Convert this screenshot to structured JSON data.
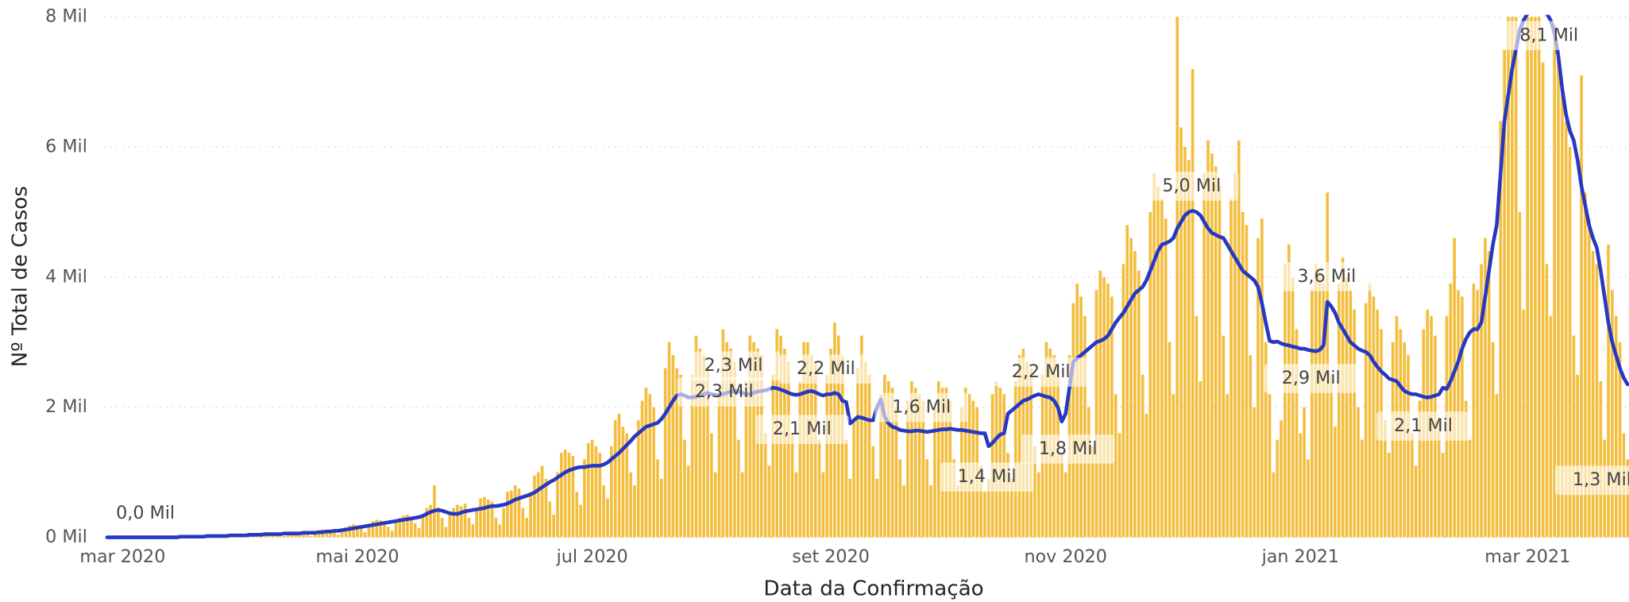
{
  "chart_data": {
    "type": "bar_line",
    "x_axis_label": "Data da Confirmação",
    "y_axis_label": "Nº Total de Casos",
    "x_tick_labels": [
      "mar 2020",
      "mai 2020",
      "jul 2020",
      "set 2020",
      "nov 2020",
      "jan 2021",
      "mar 2021"
    ],
    "ylim": [
      0,
      8
    ],
    "yticks": [
      {
        "value": 0,
        "label": "0 Mil"
      },
      {
        "value": 2,
        "label": "2 Mil"
      },
      {
        "value": 4,
        "label": "4 Mil"
      },
      {
        "value": 6,
        "label": "6 Mil"
      },
      {
        "value": 8,
        "label": "8 Mil"
      }
    ],
    "grid": true,
    "annotations": [
      "0,0 Mil",
      "2,3 Mil",
      "2,3 Mil",
      "2,2 Mil",
      "2,1 Mil",
      "1,6 Mil",
      "1,4 Mil",
      "2,2 Mil",
      "1,8 Mil",
      "5,0 Mil",
      "3,6 Mil",
      "2,9 Mil",
      "2,1 Mil",
      "8,1 Mil",
      "1,3 Mil"
    ],
    "series": [
      {
        "kind": "bar",
        "color": "#F3BE3D",
        "values": [
          0,
          0,
          0,
          0,
          0,
          0,
          0,
          0,
          0,
          0,
          0,
          0,
          0,
          0,
          0,
          0,
          0,
          0,
          0,
          0.01,
          0.01,
          0.02,
          0.01,
          0.01,
          0,
          0.01,
          0.02,
          0.03,
          0.02,
          0.03,
          0.02,
          0.01,
          0.03,
          0.04,
          0.04,
          0.04,
          0.05,
          0.03,
          0.02,
          0.01,
          0.04,
          0.06,
          0.07,
          0.06,
          0.05,
          0.03,
          0.02,
          0.05,
          0.08,
          0.07,
          0.08,
          0.06,
          0.05,
          0.02,
          0.06,
          0.1,
          0.12,
          0.11,
          0.1,
          0.08,
          0.04,
          0.1,
          0.15,
          0.18,
          0.2,
          0.18,
          0.14,
          0.08,
          0.2,
          0.25,
          0.27,
          0.26,
          0.24,
          0.16,
          0.1,
          0.24,
          0.3,
          0.33,
          0.35,
          0.32,
          0.22,
          0.14,
          0.35,
          0.45,
          0.5,
          0.8,
          0.46,
          0.3,
          0.16,
          0.35,
          0.45,
          0.5,
          0.48,
          0.52,
          0.3,
          0.2,
          0.4,
          0.6,
          0.62,
          0.58,
          0.55,
          0.3,
          0.2,
          0.45,
          0.7,
          0.72,
          0.8,
          0.75,
          0.45,
          0.3,
          0.7,
          0.95,
          1.0,
          1.1,
          0.9,
          0.55,
          0.35,
          1.0,
          1.3,
          1.35,
          1.3,
          1.25,
          0.7,
          0.5,
          1.2,
          1.45,
          1.5,
          1.4,
          1.3,
          0.8,
          0.6,
          1.4,
          1.8,
          1.9,
          1.7,
          1.6,
          1.0,
          0.8,
          1.8,
          2.1,
          2.3,
          2.2,
          2.0,
          1.2,
          0.9,
          2.6,
          3.0,
          2.8,
          2.6,
          2.5,
          1.5,
          1.1,
          2.5,
          3.1,
          2.9,
          2.8,
          2.6,
          1.6,
          1.0,
          2.3,
          3.2,
          3.0,
          2.9,
          2.7,
          1.5,
          1.0,
          2.4,
          3.1,
          3.0,
          2.9,
          2.8,
          1.6,
          1.1,
          2.5,
          3.2,
          3.1,
          2.9,
          2.7,
          1.6,
          1.0,
          2.4,
          3.0,
          3.0,
          2.8,
          2.7,
          1.5,
          1.0,
          2.5,
          2.9,
          3.3,
          3.1,
          2.8,
          1.5,
          0.9,
          1.8,
          2.6,
          3.1,
          2.7,
          2.5,
          1.4,
          0.9,
          2.2,
          2.5,
          2.4,
          2.3,
          2.0,
          1.2,
          0.8,
          2.1,
          2.4,
          2.3,
          2.2,
          2.1,
          1.2,
          0.8,
          2.0,
          2.4,
          2.3,
          2.3,
          2.1,
          1.2,
          0.8,
          2.0,
          2.3,
          2.2,
          2.1,
          2.0,
          1.1,
          0.7,
          0.9,
          2.2,
          2.4,
          2.3,
          2.2,
          1.3,
          0.9,
          2.4,
          2.8,
          2.9,
          2.7,
          2.6,
          1.4,
          1.0,
          2.5,
          3.0,
          2.9,
          2.8,
          2.6,
          1.3,
          1.0,
          2.8,
          3.6,
          3.9,
          3.7,
          3.4,
          2.0,
          1.4,
          3.8,
          4.1,
          4.0,
          3.9,
          3.7,
          2.2,
          1.6,
          4.2,
          4.8,
          4.6,
          4.4,
          4.1,
          2.5,
          1.9,
          5.0,
          5.6,
          5.4,
          5.2,
          4.9,
          3.0,
          2.2,
          8.0,
          6.3,
          6.0,
          5.8,
          7.2,
          3.4,
          2.4,
          5.6,
          6.1,
          5.9,
          5.7,
          5.4,
          3.1,
          2.2,
          5.2,
          5.6,
          6.1,
          5.0,
          4.8,
          2.8,
          2.0,
          4.6,
          4.9,
          3.0,
          2.2,
          1.0,
          1.5,
          1.8,
          4.2,
          4.5,
          4.0,
          3.2,
          1.6,
          2.0,
          1.2,
          3.8,
          4.2,
          4.1,
          3.9,
          5.3,
          2.5,
          1.7,
          3.9,
          4.3,
          4.0,
          3.8,
          3.5,
          2.0,
          1.5,
          3.6,
          3.9,
          3.7,
          3.5,
          3.2,
          1.8,
          1.3,
          3.0,
          3.4,
          3.2,
          3.0,
          2.8,
          1.6,
          1.1,
          2.1,
          3.2,
          3.5,
          3.4,
          3.1,
          1.8,
          1.3,
          3.4,
          3.9,
          4.6,
          3.8,
          3.7,
          2.1,
          1.5,
          3.9,
          3.8,
          4.2,
          4.6,
          4.4,
          3.0,
          2.2,
          6.4,
          7.5,
          8.0,
          8.0,
          8.0,
          5.0,
          3.5,
          8.0,
          8.0,
          8.0,
          8.0,
          7.3,
          4.2,
          3.4,
          7.9,
          7.5,
          6.9,
          6.4,
          6.0,
          3.1,
          2.5,
          7.1,
          5.3,
          4.9,
          4.4,
          4.2,
          2.4,
          1.5,
          4.5,
          3.8,
          3.4,
          3.0,
          1.6,
          1.2
        ]
      },
      {
        "kind": "line",
        "color": "#2637C4",
        "values": [
          0,
          0,
          0,
          0,
          0,
          0,
          0,
          0,
          0,
          0,
          0,
          0,
          0,
          0,
          0,
          0,
          0,
          0,
          0,
          0.01,
          0.01,
          0.01,
          0.01,
          0.01,
          0.01,
          0.01,
          0.02,
          0.02,
          0.02,
          0.02,
          0.02,
          0.02,
          0.03,
          0.03,
          0.03,
          0.03,
          0.03,
          0.04,
          0.04,
          0.04,
          0.04,
          0.05,
          0.05,
          0.05,
          0.05,
          0.05,
          0.06,
          0.06,
          0.06,
          0.06,
          0.06,
          0.07,
          0.07,
          0.07,
          0.07,
          0.08,
          0.08,
          0.09,
          0.09,
          0.1,
          0.1,
          0.11,
          0.12,
          0.13,
          0.14,
          0.15,
          0.16,
          0.17,
          0.18,
          0.19,
          0.2,
          0.21,
          0.22,
          0.23,
          0.24,
          0.25,
          0.26,
          0.27,
          0.28,
          0.29,
          0.3,
          0.31,
          0.33,
          0.36,
          0.39,
          0.41,
          0.42,
          0.41,
          0.39,
          0.37,
          0.36,
          0.36,
          0.38,
          0.4,
          0.41,
          0.42,
          0.43,
          0.44,
          0.45,
          0.47,
          0.48,
          0.48,
          0.49,
          0.5,
          0.52,
          0.55,
          0.58,
          0.6,
          0.62,
          0.64,
          0.66,
          0.69,
          0.73,
          0.77,
          0.81,
          0.85,
          0.88,
          0.92,
          0.96,
          1.0,
          1.03,
          1.05,
          1.07,
          1.08,
          1.08,
          1.09,
          1.1,
          1.1,
          1.1,
          1.12,
          1.15,
          1.2,
          1.25,
          1.3,
          1.36,
          1.42,
          1.48,
          1.55,
          1.6,
          1.65,
          1.7,
          1.72,
          1.74,
          1.76,
          1.82,
          1.9,
          2.0,
          2.1,
          2.18,
          2.2,
          2.18,
          2.15,
          2.15,
          2.16,
          2.18,
          2.2,
          2.22,
          2.2,
          2.19,
          2.18,
          2.2,
          2.22,
          2.24,
          2.25,
          2.24,
          2.22,
          2.2,
          2.2,
          2.22,
          2.24,
          2.25,
          2.26,
          2.28,
          2.3,
          2.29,
          2.27,
          2.25,
          2.22,
          2.2,
          2.19,
          2.2,
          2.22,
          2.24,
          2.25,
          2.23,
          2.2,
          2.18,
          2.2,
          2.2,
          2.22,
          2.2,
          2.1,
          2.08,
          1.75,
          1.8,
          1.85,
          1.84,
          1.82,
          1.8,
          1.8,
          2.0,
          2.12,
          1.85,
          1.75,
          1.7,
          1.68,
          1.65,
          1.64,
          1.63,
          1.63,
          1.64,
          1.64,
          1.63,
          1.62,
          1.63,
          1.64,
          1.65,
          1.66,
          1.66,
          1.67,
          1.66,
          1.65,
          1.65,
          1.64,
          1.63,
          1.62,
          1.61,
          1.6,
          1.6,
          1.4,
          1.45,
          1.52,
          1.58,
          1.6,
          1.9,
          1.95,
          2.0,
          2.05,
          2.1,
          2.12,
          2.15,
          2.18,
          2.2,
          2.18,
          2.16,
          2.15,
          2.1,
          2.0,
          1.78,
          1.9,
          2.3,
          2.7,
          2.75,
          2.8,
          2.85,
          2.9,
          2.95,
          3.0,
          3.02,
          3.05,
          3.1,
          3.2,
          3.3,
          3.38,
          3.45,
          3.55,
          3.65,
          3.75,
          3.8,
          3.85,
          3.95,
          4.1,
          4.25,
          4.4,
          4.5,
          4.52,
          4.55,
          4.6,
          4.75,
          4.85,
          4.95,
          5.0,
          5.02,
          5.0,
          4.95,
          4.85,
          4.75,
          4.68,
          4.65,
          4.62,
          4.6,
          4.5,
          4.4,
          4.3,
          4.2,
          4.1,
          4.05,
          4.0,
          3.95,
          3.85,
          3.6,
          3.3,
          3.02,
          3.0,
          3.01,
          2.98,
          2.96,
          2.95,
          2.93,
          2.92,
          2.9,
          2.9,
          2.88,
          2.87,
          2.86,
          2.88,
          2.95,
          3.62,
          3.55,
          3.45,
          3.3,
          3.2,
          3.1,
          3.0,
          2.95,
          2.9,
          2.87,
          2.85,
          2.8,
          2.7,
          2.62,
          2.55,
          2.5,
          2.44,
          2.42,
          2.4,
          2.32,
          2.25,
          2.22,
          2.2,
          2.2,
          2.18,
          2.16,
          2.15,
          2.16,
          2.18,
          2.2,
          2.3,
          2.28,
          2.4,
          2.55,
          2.7,
          2.9,
          3.05,
          3.15,
          3.2,
          3.2,
          3.3,
          3.7,
          4.1,
          4.5,
          4.8,
          5.6,
          6.4,
          6.8,
          7.2,
          7.5,
          7.8,
          7.95,
          8.05,
          8.08,
          8.1,
          8.1,
          8.08,
          8.05,
          7.95,
          7.75,
          7.4,
          6.9,
          6.5,
          6.25,
          6.1,
          5.8,
          5.4,
          5.1,
          4.8,
          4.6,
          4.45,
          4.1,
          3.7,
          3.3,
          3.0,
          2.8,
          2.6,
          2.45,
          2.35
        ]
      }
    ]
  }
}
